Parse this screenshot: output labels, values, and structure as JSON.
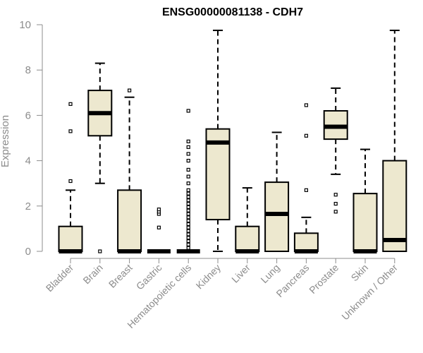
{
  "chart_data": {
    "type": "box",
    "title": "ENSG00000081138 - CDH7",
    "ylabel": "Expression",
    "xlabel": "",
    "ylim": [
      0,
      10
    ],
    "yticks": [
      0,
      2,
      4,
      6,
      8,
      10
    ],
    "grid": false,
    "legend": "none",
    "colors": {
      "box_fill": "#ede8cf",
      "box_stroke": "#000000",
      "axis": "#8c8c8c"
    },
    "categories": [
      "Bladder",
      "Brain",
      "Breast",
      "Gastric",
      "Hematopoietic cells",
      "Kidney",
      "Liver",
      "Lung",
      "Pancreas",
      "Prostate",
      "Skin",
      "Unknown / Other"
    ],
    "series": [
      {
        "category": "Bladder",
        "whisker_low": 0,
        "q1": 0,
        "median": 0,
        "q3": 1.1,
        "whisker_high": 2.7,
        "outliers": [
          3.1,
          5.3,
          6.5
        ]
      },
      {
        "category": "Brain",
        "whisker_low": 3.0,
        "q1": 5.1,
        "median": 6.1,
        "q3": 7.1,
        "whisker_high": 8.3,
        "outliers": [
          0
        ]
      },
      {
        "category": "Breast",
        "whisker_low": 0,
        "q1": 0,
        "median": 0,
        "q3": 2.7,
        "whisker_high": 6.8,
        "outliers": [
          7.1
        ]
      },
      {
        "category": "Gastric",
        "whisker_low": 0,
        "q1": 0,
        "median": 0,
        "q3": 0,
        "whisker_high": 0,
        "outliers": [
          1.05,
          1.65,
          1.75,
          1.85
        ]
      },
      {
        "category": "Hematopoietic cells",
        "whisker_low": 0,
        "q1": 0,
        "median": 0,
        "q3": 0,
        "whisker_high": 0,
        "outliers": [
          0.15,
          0.3,
          0.45,
          0.6,
          0.75,
          0.9,
          1.05,
          1.2,
          1.35,
          1.5,
          1.65,
          1.8,
          1.95,
          2.1,
          2.25,
          2.4,
          2.55,
          2.7,
          3.0,
          3.3,
          3.6,
          4.0,
          4.3,
          4.6,
          4.85,
          6.2
        ]
      },
      {
        "category": "Kidney",
        "whisker_low": 0,
        "q1": 1.4,
        "median": 4.8,
        "q3": 5.4,
        "whisker_high": 9.75,
        "outliers": []
      },
      {
        "category": "Liver",
        "whisker_low": 0,
        "q1": 0,
        "median": 0,
        "q3": 1.1,
        "whisker_high": 2.8,
        "outliers": []
      },
      {
        "category": "Lung",
        "whisker_low": 0,
        "q1": 0,
        "median": 1.65,
        "q3": 3.05,
        "whisker_high": 5.25,
        "outliers": []
      },
      {
        "category": "Pancreas",
        "whisker_low": 0,
        "q1": 0,
        "median": 0,
        "q3": 0.8,
        "whisker_high": 1.5,
        "outliers": [
          2.7,
          5.1,
          6.45
        ]
      },
      {
        "category": "Prostate",
        "whisker_low": 3.4,
        "q1": 4.95,
        "median": 5.5,
        "q3": 6.2,
        "whisker_high": 7.2,
        "outliers": [
          1.75,
          2.1,
          2.5
        ]
      },
      {
        "category": "Skin",
        "whisker_low": 0,
        "q1": 0,
        "median": 0,
        "q3": 2.55,
        "whisker_high": 4.5,
        "outliers": []
      },
      {
        "category": "Unknown / Other",
        "whisker_low": 0,
        "q1": 0,
        "median": 0.5,
        "q3": 4.0,
        "whisker_high": 9.75,
        "outliers": []
      }
    ]
  }
}
